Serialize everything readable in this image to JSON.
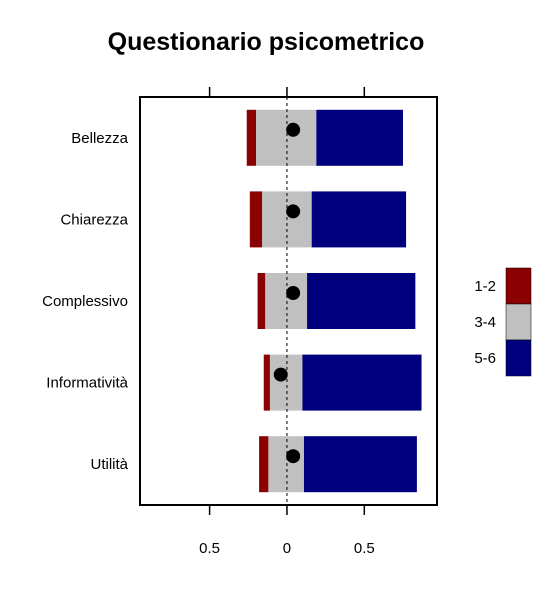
{
  "chart_data": {
    "type": "bar",
    "stacked": "diverging",
    "title": "Questionario psicometrico",
    "categories": [
      "Bellezza",
      "Chiarezza",
      "Complessivo",
      "Informatività",
      "Utilità"
    ],
    "series": [
      {
        "name": "1-2",
        "color": "#8b0000",
        "starts": [
          -0.26,
          -0.24,
          -0.19,
          -0.15,
          -0.18
        ],
        "ends": [
          -0.2,
          -0.16,
          -0.14,
          -0.11,
          -0.12
        ]
      },
      {
        "name": "3-4",
        "color": "#c0c0c0",
        "starts": [
          -0.2,
          -0.16,
          -0.14,
          -0.11,
          -0.12
        ],
        "ends": [
          0.19,
          0.16,
          0.13,
          0.1,
          0.11
        ]
      },
      {
        "name": "5-6",
        "color": "#00007f",
        "starts": [
          0.19,
          0.16,
          0.13,
          0.1,
          0.11
        ],
        "ends": [
          0.75,
          0.77,
          0.83,
          0.87,
          0.84
        ]
      }
    ],
    "points": [
      0.04,
      0.04,
      0.04,
      -0.04,
      0.04
    ],
    "reference_line": 0,
    "xlim": [
      -0.95,
      0.97
    ],
    "x_ticks": [
      -0.5,
      0,
      0.5
    ],
    "x_tick_labels": [
      "0.5",
      "0",
      "0.5"
    ],
    "legend": {
      "position": "right",
      "entries": [
        "1-2",
        "3-4",
        "5-6"
      ]
    },
    "grid": false,
    "xlabel": "",
    "ylabel": ""
  }
}
